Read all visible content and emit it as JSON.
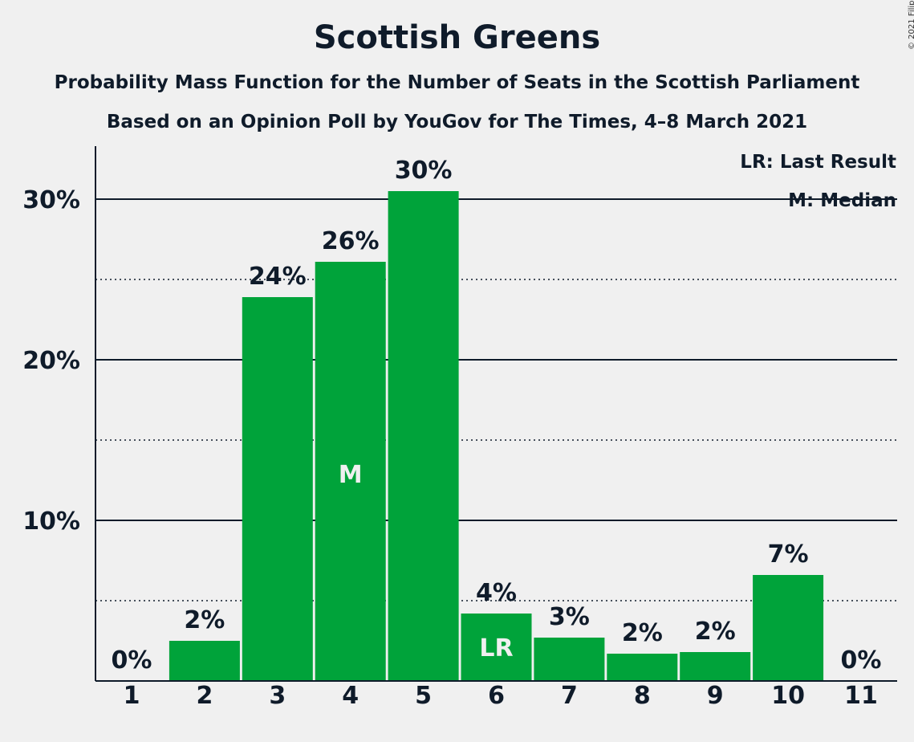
{
  "chart_data": {
    "type": "bar",
    "title": "Scottish Greens",
    "subtitle": "Probability Mass Function for the Number of Seats in the Scottish Parliament",
    "subtitle2": "Based on an Opinion Poll by YouGov for The Times, 4–8 March 2021",
    "copyright": "© 2021 Filip van Laenen",
    "categories": [
      "1",
      "2",
      "3",
      "4",
      "5",
      "6",
      "7",
      "8",
      "9",
      "10",
      "11"
    ],
    "values": [
      0,
      2.5,
      23.9,
      26.1,
      30.5,
      4.2,
      2.7,
      1.7,
      1.8,
      6.6,
      0
    ],
    "value_labels": [
      "0%",
      "2%",
      "24%",
      "26%",
      "30%",
      "4%",
      "3%",
      "2%",
      "2%",
      "7%",
      "0%"
    ],
    "bar_markers": {
      "4": "M",
      "6": "LR"
    },
    "ylim": [
      0,
      33
    ],
    "yticks": [
      10,
      20,
      30
    ],
    "ytick_labels": [
      "10%",
      "20%",
      "30%"
    ],
    "minor_gridlines": [
      5,
      15,
      25
    ],
    "grid": true,
    "legend": [
      "LR: Last Result",
      "M: Median"
    ],
    "legend_position": "top-right",
    "colors": {
      "bar": "#00a33a",
      "text": "#0f1b2a",
      "background": "#f0f0f0"
    }
  }
}
